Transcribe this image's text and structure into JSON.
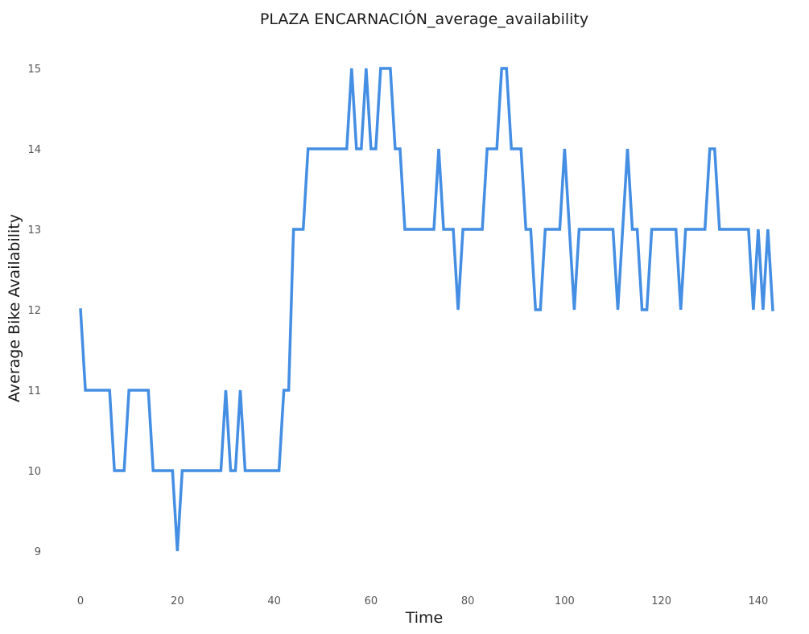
{
  "chart_data": {
    "type": "line",
    "title": "PLAZA ENCARNACIÓN_average_availability",
    "xlabel": "Time",
    "ylabel": "Average Bike Availability",
    "xlim": [
      -5,
      148
    ],
    "ylim": [
      8.65,
      15.35
    ],
    "xticks": [
      0,
      20,
      40,
      60,
      80,
      100,
      120,
      140
    ],
    "yticks": [
      9,
      10,
      11,
      12,
      13,
      14,
      15
    ],
    "grid": false,
    "line_color": "#448ee4",
    "series": [
      {
        "x": [
          0,
          1,
          2,
          3,
          4,
          5,
          6,
          7,
          8,
          9,
          10,
          11,
          12,
          13,
          14,
          15,
          16,
          17,
          18,
          19,
          20,
          21,
          22,
          23,
          24,
          25,
          26,
          27,
          28,
          29,
          30,
          31,
          32,
          33,
          34,
          35,
          36,
          37,
          38,
          39,
          40,
          41,
          42,
          43,
          44,
          45,
          46,
          47,
          48,
          49,
          50,
          51,
          52,
          53,
          54,
          55,
          56,
          57,
          58,
          59,
          60,
          61,
          62,
          63,
          64,
          65,
          66,
          67,
          68,
          69,
          70,
          71,
          72,
          73,
          74,
          75,
          76,
          77,
          78,
          79,
          80,
          81,
          82,
          83,
          84,
          85,
          86,
          87,
          88,
          89,
          90,
          91,
          92,
          93,
          94,
          95,
          96,
          97,
          98,
          99,
          100,
          101,
          102,
          103,
          104,
          105,
          106,
          107,
          108,
          109,
          110,
          111,
          112,
          113,
          114,
          115,
          116,
          117,
          118,
          119,
          120,
          121,
          122,
          123,
          124,
          125,
          126,
          127,
          128,
          129,
          130,
          131,
          132,
          133,
          134,
          135,
          136,
          137,
          138,
          139,
          140,
          141,
          142,
          143
        ],
        "values": [
          12,
          11,
          11,
          11,
          11,
          11,
          11,
          10,
          10,
          10,
          11,
          11,
          11,
          11,
          11,
          10,
          10,
          10,
          10,
          10,
          9,
          10,
          10,
          10,
          10,
          10,
          10,
          10,
          10,
          10,
          11,
          10,
          10,
          11,
          10,
          10,
          10,
          10,
          10,
          10,
          10,
          10,
          11,
          11,
          13,
          13,
          13,
          14,
          14,
          14,
          14,
          14,
          14,
          14,
          14,
          14,
          15,
          14,
          14,
          15,
          14,
          14,
          15,
          15,
          15,
          14,
          14,
          13,
          13,
          13,
          13,
          13,
          13,
          13,
          14,
          13,
          13,
          13,
          12,
          13,
          13,
          13,
          13,
          13,
          14,
          14,
          14,
          15,
          15,
          14,
          14,
          14,
          13,
          13,
          12,
          12,
          13,
          13,
          13,
          13,
          14,
          13,
          12,
          13,
          13,
          13,
          13,
          13,
          13,
          13,
          13,
          12,
          13,
          14,
          13,
          13,
          12,
          12,
          13,
          13,
          13,
          13,
          13,
          13,
          12,
          13,
          13,
          13,
          13,
          13,
          14,
          14,
          13,
          13,
          13,
          13,
          13,
          13,
          13,
          12,
          13,
          12,
          13,
          12
        ]
      }
    ]
  }
}
